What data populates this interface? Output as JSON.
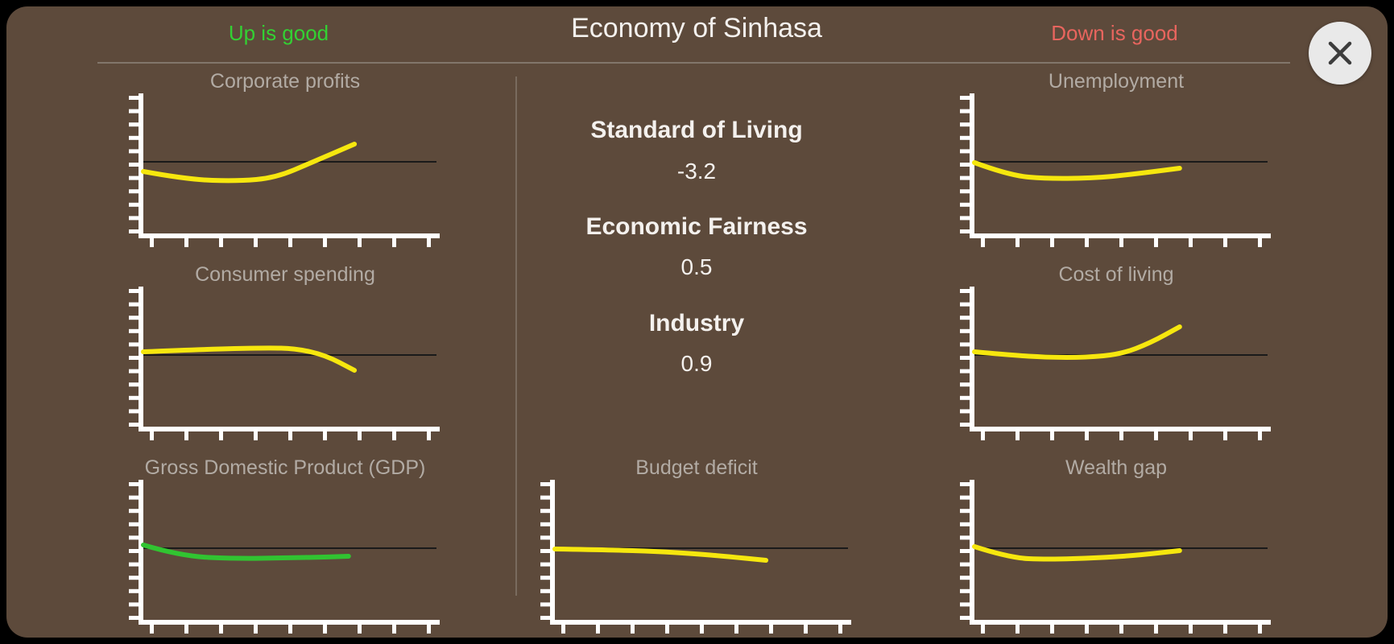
{
  "header": {
    "up_label": "Up is good",
    "title": "Economy of Sinhasa",
    "down_label": "Down is good",
    "up_color": "#33d133",
    "down_color": "#e8655e"
  },
  "stats": [
    {
      "label": "Standard of Living",
      "value": "-3.2"
    },
    {
      "label": "Economic Fairness",
      "value": "0.5"
    },
    {
      "label": "Industry",
      "value": "0.9"
    }
  ],
  "colors": {
    "panel_background": "#5d4a3b",
    "chart_line_yellow": "#f6e70e",
    "chart_line_green": "#31c431",
    "chart_axis": "#ffffff",
    "chart_baseline": "#1a1a1a",
    "chart_title_text": "#b2aba4",
    "divider": "#8f867c",
    "close_button_background": "#e9e9e9"
  },
  "charts": [
    {
      "id": "corporate-profits",
      "title": "Corporate profits",
      "column": "up-is-good",
      "type": "line",
      "color": "#f6e70e",
      "points": [
        [
          0,
          -12
        ],
        [
          0.15,
          -22
        ],
        [
          0.32,
          -24
        ],
        [
          0.45,
          -20
        ],
        [
          0.58,
          0
        ],
        [
          0.72,
          22
        ]
      ]
    },
    {
      "id": "consumer-spending",
      "title": "Consumer spending",
      "column": "up-is-good",
      "type": "line",
      "color": "#f6e70e",
      "points": [
        [
          0,
          4
        ],
        [
          0.2,
          7
        ],
        [
          0.42,
          9
        ],
        [
          0.52,
          8
        ],
        [
          0.62,
          0
        ],
        [
          0.72,
          -19
        ]
      ]
    },
    {
      "id": "gdp",
      "title": "Gross Domestic Product (GDP)",
      "column": "up-is-good",
      "type": "line",
      "color": "#31c431",
      "points": [
        [
          0,
          4
        ],
        [
          0.13,
          -10
        ],
        [
          0.32,
          -13
        ],
        [
          0.48,
          -12
        ],
        [
          0.62,
          -11
        ],
        [
          0.7,
          -10
        ]
      ]
    },
    {
      "id": "unemployment",
      "title": "Unemployment",
      "column": "down-is-good",
      "type": "line",
      "color": "#f6e70e",
      "points": [
        [
          0,
          -1
        ],
        [
          0.12,
          -17
        ],
        [
          0.25,
          -21
        ],
        [
          0.42,
          -20
        ],
        [
          0.55,
          -15
        ],
        [
          0.7,
          -8
        ]
      ]
    },
    {
      "id": "cost-of-living",
      "title": "Cost of living",
      "column": "down-is-good",
      "type": "line",
      "color": "#f6e70e",
      "points": [
        [
          0,
          4
        ],
        [
          0.12,
          0
        ],
        [
          0.25,
          -3
        ],
        [
          0.38,
          -3
        ],
        [
          0.5,
          1
        ],
        [
          0.6,
          15
        ],
        [
          0.7,
          35
        ]
      ]
    },
    {
      "id": "wealth-gap",
      "title": "Wealth gap",
      "column": "down-is-good",
      "type": "line",
      "color": "#f6e70e",
      "points": [
        [
          0,
          2
        ],
        [
          0.12,
          -12
        ],
        [
          0.25,
          -14
        ],
        [
          0.42,
          -12
        ],
        [
          0.55,
          -9
        ],
        [
          0.7,
          -3
        ]
      ]
    },
    {
      "id": "budget-deficit",
      "title": "Budget deficit",
      "column": "middle",
      "type": "line",
      "color": "#f6e70e",
      "points": [
        [
          0,
          -1
        ],
        [
          0.18,
          -2
        ],
        [
          0.35,
          -4
        ],
        [
          0.48,
          -7
        ],
        [
          0.58,
          -10
        ],
        [
          0.72,
          -15
        ]
      ]
    }
  ]
}
